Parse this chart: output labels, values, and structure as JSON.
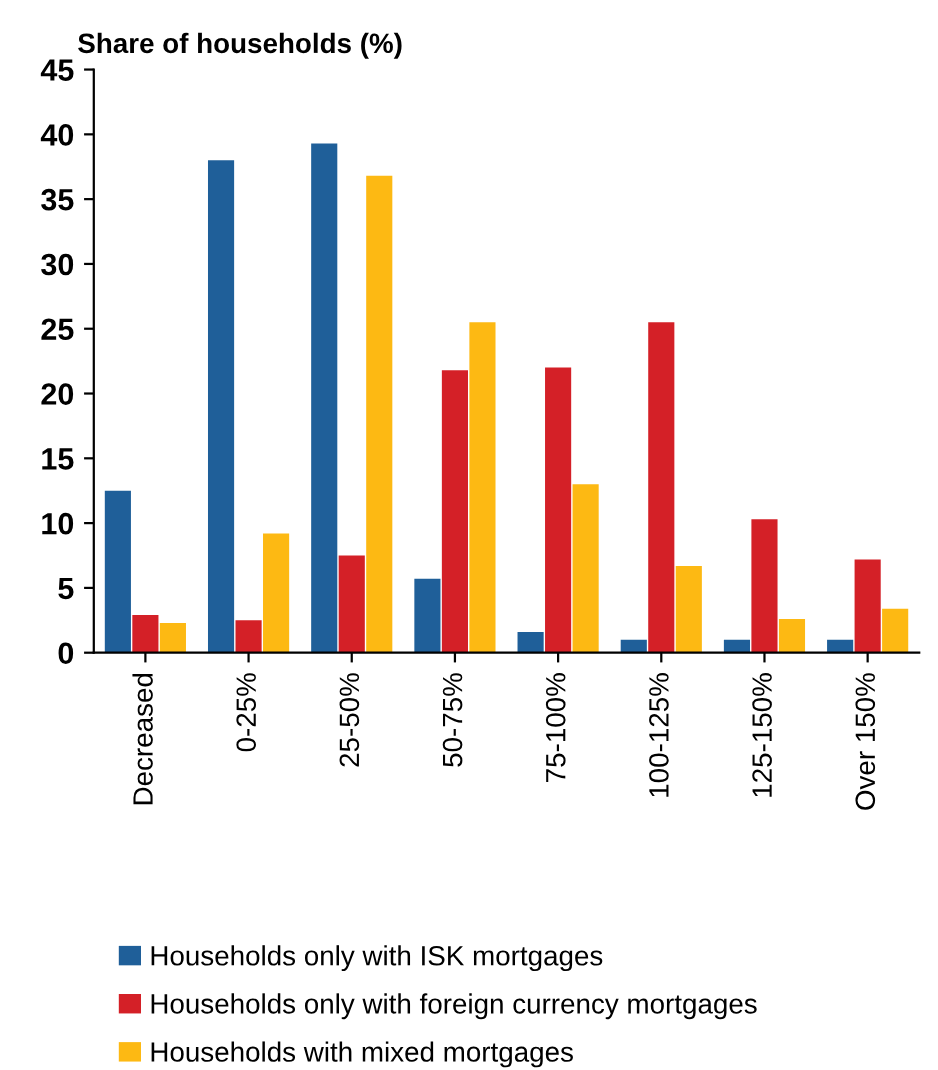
{
  "chart_data": {
    "type": "bar",
    "ylabel": "Share of households (%)",
    "categories": [
      "Decreased",
      "0-25%",
      "25-50%",
      "50-75%",
      "75-100%",
      "100-125%",
      "125-150%",
      "Over 150%"
    ],
    "series": [
      {
        "name": "Households only with ISK mortgages",
        "color": "#1f5f99",
        "values": [
          12.5,
          38,
          39.3,
          5.7,
          1.6,
          1,
          1,
          1
        ]
      },
      {
        "name": "Households only with foreign currency mortgages",
        "color": "#d42027",
        "values": [
          2.9,
          2.5,
          7.5,
          21.8,
          22,
          25.5,
          10.3,
          7.2
        ]
      },
      {
        "name": "Households with mixed mortgages",
        "color": "#fdb913",
        "values": [
          2.3,
          9.2,
          36.8,
          25.5,
          13,
          6.7,
          2.6,
          3.4
        ]
      }
    ],
    "ylim": [
      0,
      45
    ],
    "yticks": [
      0,
      5,
      10,
      15,
      20,
      25,
      30,
      35,
      40,
      45
    ],
    "grid": false,
    "legend": "bottom"
  }
}
